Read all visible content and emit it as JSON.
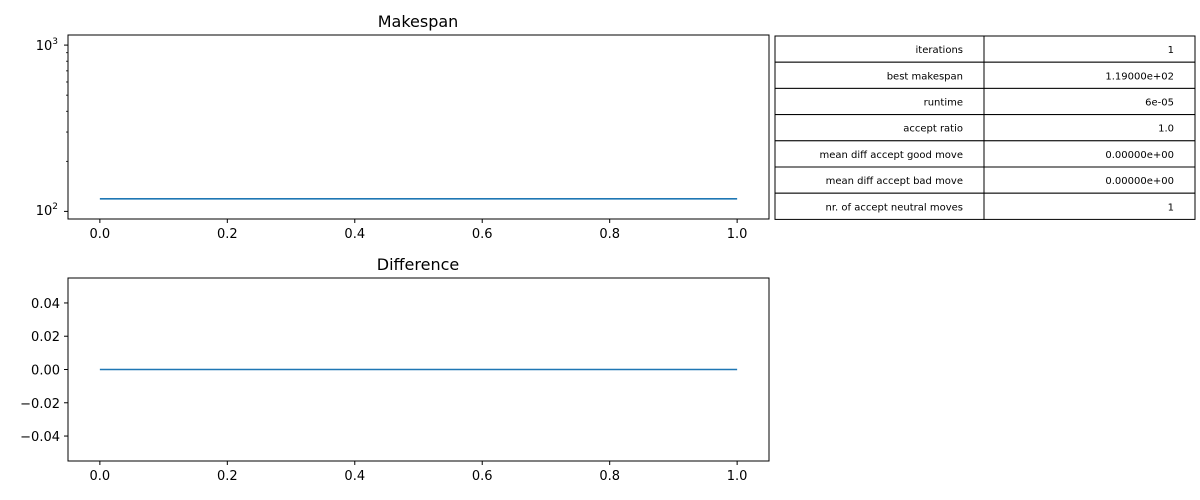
{
  "chart_data": [
    {
      "type": "line",
      "title": "Makespan",
      "xlabel": "",
      "ylabel": "",
      "yscale": "log",
      "xlim": [
        -0.05,
        1.05
      ],
      "ylim": [
        90,
        1150
      ],
      "x_ticks": [
        "0.0",
        "0.2",
        "0.4",
        "0.6",
        "0.8",
        "1.0"
      ],
      "y_ticks": [
        {
          "base": "10",
          "exp": "3",
          "value": 1000
        },
        {
          "base": "10",
          "exp": "2",
          "value": 100
        }
      ],
      "series": [
        {
          "x": [
            0.0,
            1.0
          ],
          "y": [
            119.0,
            119.0
          ],
          "color": "#1f77b4"
        }
      ],
      "grid": false
    },
    {
      "type": "line",
      "title": "Difference",
      "xlabel": "",
      "ylabel": "",
      "xlim": [
        -0.05,
        1.05
      ],
      "ylim": [
        -0.055,
        0.055
      ],
      "x_ticks": [
        "0.0",
        "0.2",
        "0.4",
        "0.6",
        "0.8",
        "1.0"
      ],
      "y_ticks": [
        "0.04",
        "0.02",
        "0.00",
        "−0.02",
        "−0.04"
      ],
      "series": [
        {
          "x": [
            0.0,
            1.0
          ],
          "y": [
            0.0,
            0.0
          ],
          "color": "#1f77b4"
        }
      ],
      "grid": false
    },
    {
      "type": "table",
      "rows": [
        [
          "iterations",
          "1"
        ],
        [
          "best makespan",
          "1.19000e+02"
        ],
        [
          "runtime",
          "6e-05"
        ],
        [
          "accept ratio",
          "1.0"
        ],
        [
          "mean diff accept good move",
          "0.00000e+00"
        ],
        [
          "mean diff accept bad move",
          "0.00000e+00"
        ],
        [
          "nr. of accept neutral moves",
          "1"
        ]
      ]
    }
  ]
}
